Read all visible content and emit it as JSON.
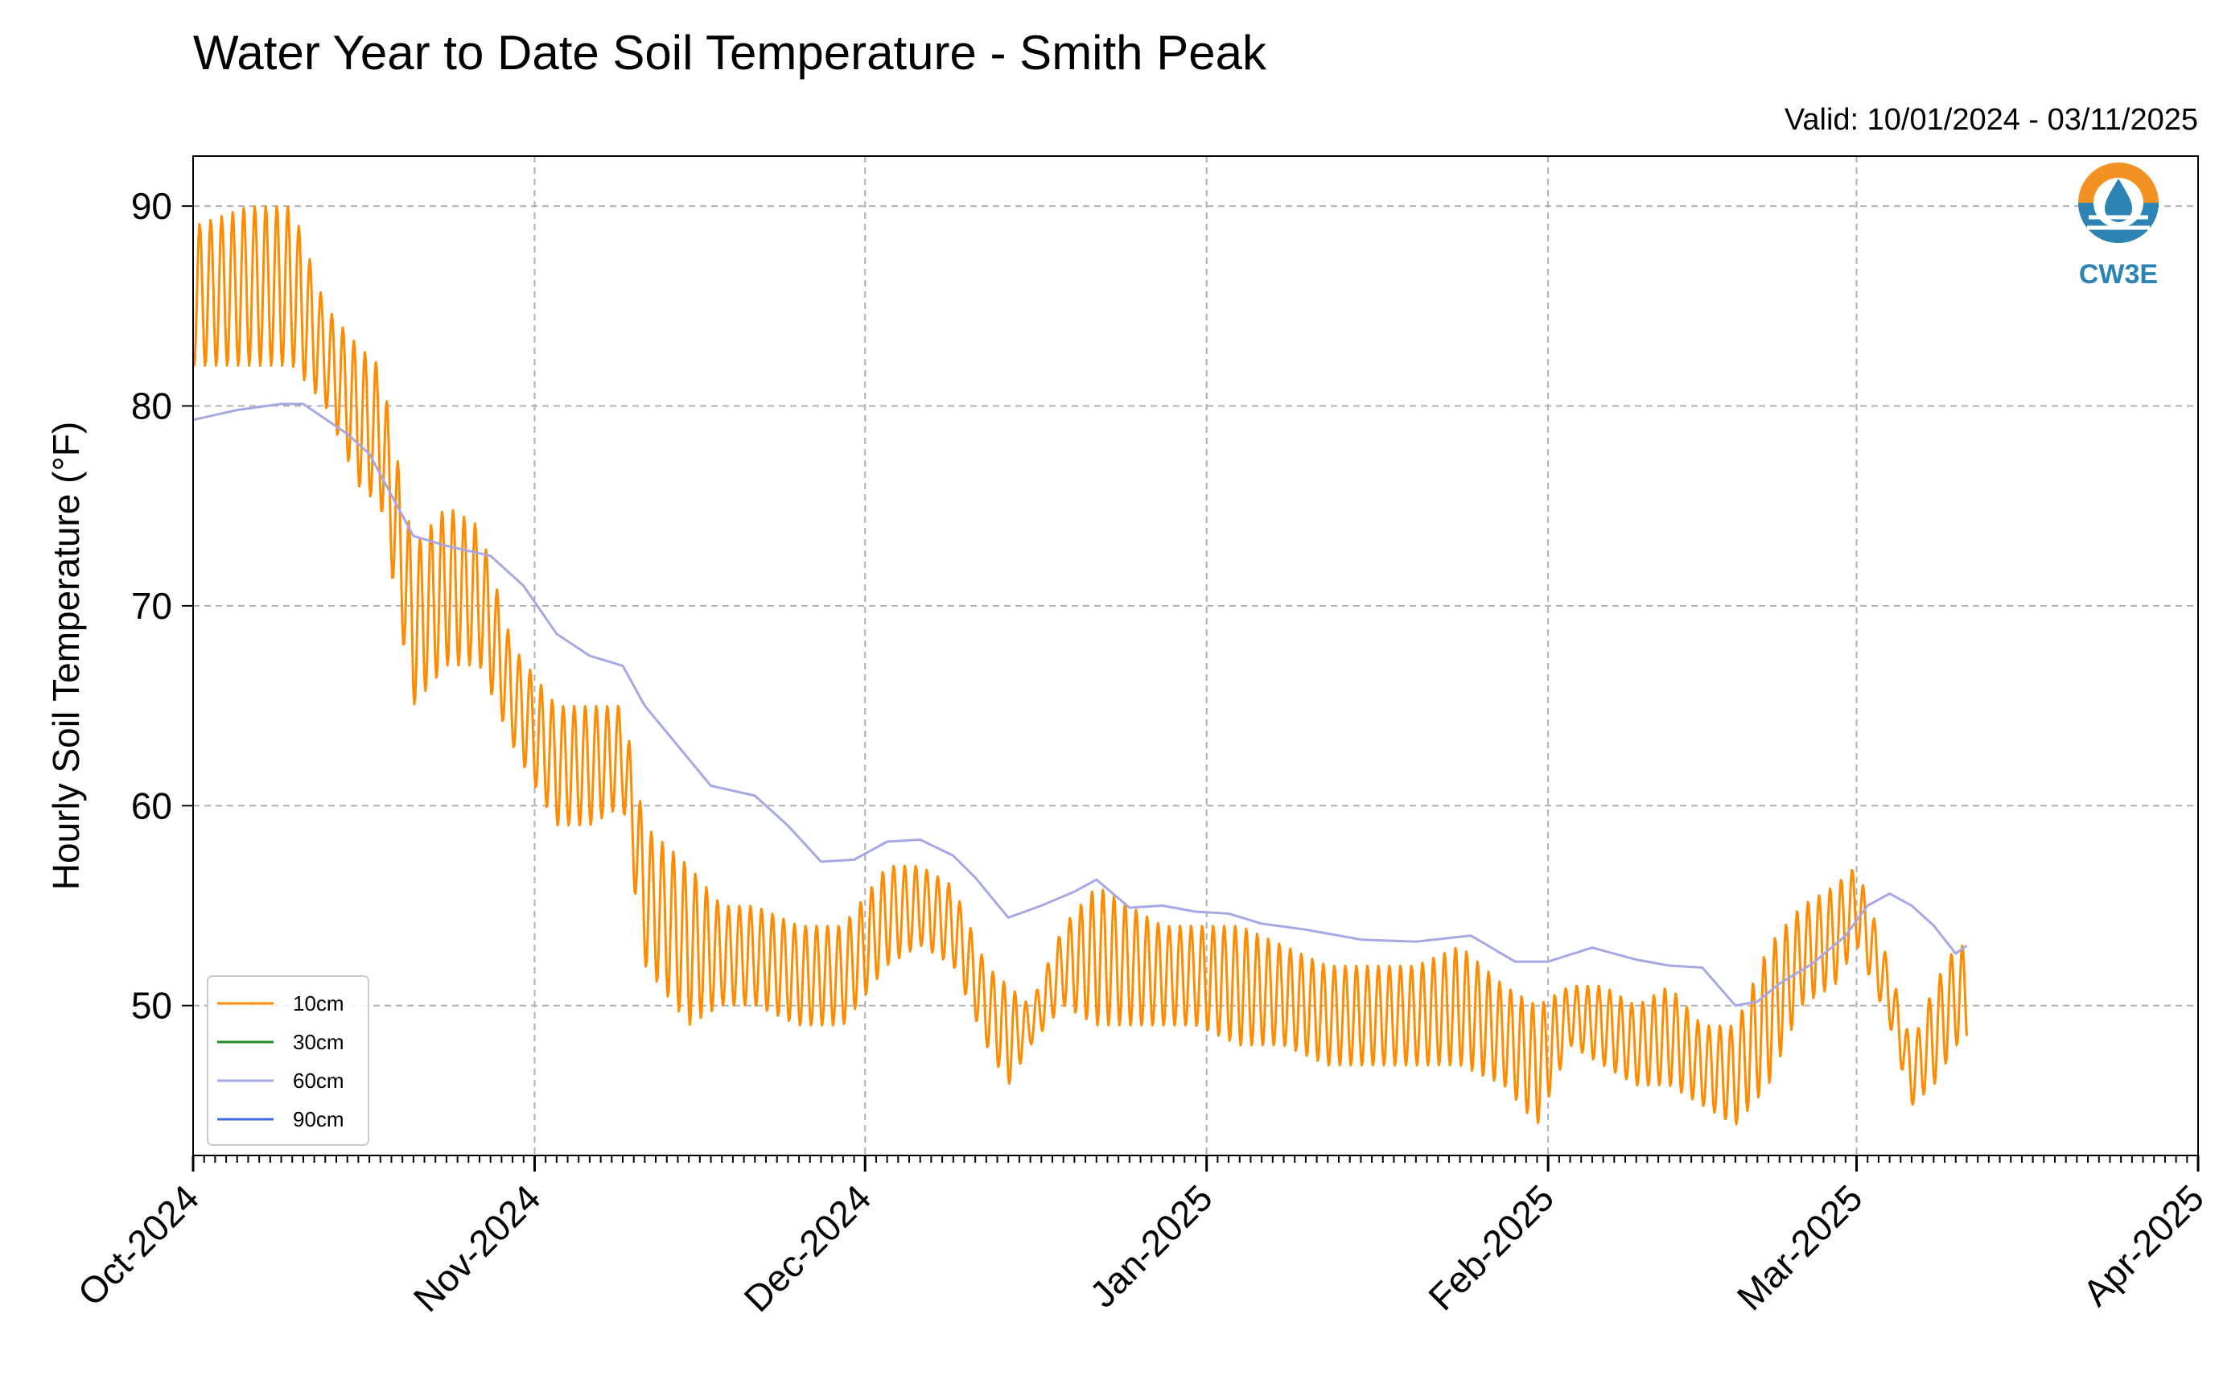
{
  "chart_data": {
    "type": "line",
    "title": "Water Year to Date Soil Temperature - Smith Peak",
    "subtitle": "Valid: 10/01/2024 - 03/11/2025",
    "xlabel": "",
    "ylabel": "Hourly Soil Temperature (°F)",
    "x_tick_labels": [
      "Oct-2024",
      "Nov-2024",
      "Dec-2024",
      "Jan-2025",
      "Feb-2025",
      "Mar-2025",
      "Apr-2025"
    ],
    "x_tick_dates": [
      "2024-10-01",
      "2024-11-01",
      "2024-12-01",
      "2025-01-01",
      "2025-02-01",
      "2025-03-01",
      "2025-04-01"
    ],
    "xlim": [
      "2024-10-01",
      "2025-04-01"
    ],
    "y_ticks": [
      50,
      60,
      70,
      80,
      90
    ],
    "ylim": [
      42.5,
      92.5
    ],
    "grid": true,
    "legend_position": "lower-left",
    "logo_text": "CW3E",
    "series": [
      {
        "name": "10cm",
        "color": "#ff8c00",
        "diurnal": true,
        "note_type": "envelope",
        "x": [
          "2024-10-01",
          "2024-10-06",
          "2024-10-10",
          "2024-10-13",
          "2024-10-16",
          "2024-10-18",
          "2024-10-21",
          "2024-10-24",
          "2024-10-27",
          "2024-10-30",
          "2024-11-03",
          "2024-11-06",
          "2024-11-09",
          "2024-11-11",
          "2024-11-15",
          "2024-11-18",
          "2024-11-21",
          "2024-11-25",
          "2024-11-29",
          "2024-12-03",
          "2024-12-06",
          "2024-12-09",
          "2024-12-12",
          "2024-12-14",
          "2024-12-16",
          "2024-12-19",
          "2024-12-22",
          "2024-12-25",
          "2024-12-28",
          "2024-12-31",
          "2025-01-04",
          "2025-01-08",
          "2025-01-12",
          "2025-01-16",
          "2025-01-20",
          "2025-01-24",
          "2025-01-28",
          "2025-01-31",
          "2025-02-03",
          "2025-02-06",
          "2025-02-09",
          "2025-02-12",
          "2025-02-15",
          "2025-02-18",
          "2025-02-21",
          "2025-02-24",
          "2025-02-27",
          "2025-03-01",
          "2025-03-04",
          "2025-03-06",
          "2025-03-08",
          "2025-03-10",
          "2025-03-11"
        ],
        "max": [
          89.0,
          90.0,
          90.0,
          85.0,
          83.0,
          82.0,
          73.0,
          75.0,
          74.0,
          68.0,
          65.0,
          65.0,
          65.0,
          59.0,
          57.0,
          55.0,
          55.0,
          54.0,
          54.0,
          57.0,
          57.0,
          56.0,
          52.0,
          51.0,
          50.0,
          54.0,
          56.0,
          55.0,
          54.0,
          54.0,
          54.0,
          53.0,
          52.0,
          52.0,
          52.0,
          53.0,
          51.0,
          50.0,
          51.0,
          51.0,
          50.0,
          51.0,
          49.0,
          49.0,
          53.0,
          55.0,
          56.0,
          57.0,
          52.0,
          48.0,
          51.0,
          53.0,
          53.0
        ],
        "min": [
          82.0,
          82.0,
          82.0,
          80.0,
          76.0,
          75.0,
          65.0,
          67.0,
          67.0,
          63.0,
          59.0,
          59.0,
          60.0,
          52.0,
          49.0,
          50.0,
          50.0,
          49.0,
          49.0,
          52.0,
          53.0,
          52.0,
          48.0,
          46.0,
          48.0,
          50.0,
          49.0,
          49.0,
          49.0,
          49.0,
          48.0,
          48.0,
          47.0,
          47.0,
          47.0,
          47.0,
          46.0,
          44.0,
          48.0,
          47.0,
          46.0,
          46.0,
          45.0,
          44.0,
          46.0,
          50.0,
          51.0,
          53.0,
          49.0,
          45.0,
          46.0,
          48.0,
          48.0
        ]
      },
      {
        "name": "30cm",
        "color": "#228b22",
        "x": [],
        "y": []
      },
      {
        "name": "60cm",
        "color": "#a6a8e6",
        "x": [
          "2024-10-01",
          "2024-10-05",
          "2024-10-09",
          "2024-10-11",
          "2024-10-15",
          "2024-10-17",
          "2024-10-21",
          "2024-10-24",
          "2024-10-28",
          "2024-10-31",
          "2024-11-03",
          "2024-11-06",
          "2024-11-09",
          "2024-11-11",
          "2024-11-14",
          "2024-11-17",
          "2024-11-21",
          "2024-11-24",
          "2024-11-27",
          "2024-11-30",
          "2024-12-03",
          "2024-12-06",
          "2024-12-09",
          "2024-12-11",
          "2024-12-14",
          "2024-12-17",
          "2024-12-20",
          "2024-12-22",
          "2024-12-25",
          "2024-12-28",
          "2024-12-31",
          "2025-01-03",
          "2025-01-06",
          "2025-01-10",
          "2025-01-15",
          "2025-01-20",
          "2025-01-25",
          "2025-01-29",
          "2025-02-01",
          "2025-02-05",
          "2025-02-09",
          "2025-02-12",
          "2025-02-15",
          "2025-02-18",
          "2025-02-20",
          "2025-02-22",
          "2025-02-25",
          "2025-02-28",
          "2025-03-02",
          "2025-03-04",
          "2025-03-06",
          "2025-03-08",
          "2025-03-10",
          "2025-03-11"
        ],
        "y": [
          79.3,
          79.8,
          80.1,
          80.1,
          78.6,
          77.6,
          73.5,
          73.0,
          72.5,
          71.0,
          68.6,
          67.5,
          67.0,
          65.0,
          63.0,
          61.0,
          60.5,
          59.0,
          57.2,
          57.3,
          58.2,
          58.3,
          57.5,
          56.4,
          54.4,
          55.0,
          55.7,
          56.3,
          54.9,
          55.0,
          54.7,
          54.6,
          54.1,
          53.8,
          53.3,
          53.2,
          53.5,
          52.2,
          52.2,
          52.9,
          52.3,
          52.0,
          51.9,
          50.0,
          50.2,
          51.1,
          52.1,
          53.5,
          55.0,
          55.6,
          55.0,
          54.0,
          52.6,
          53.0
        ]
      },
      {
        "name": "90cm",
        "color": "#4169e1",
        "x": [],
        "y": []
      }
    ]
  }
}
